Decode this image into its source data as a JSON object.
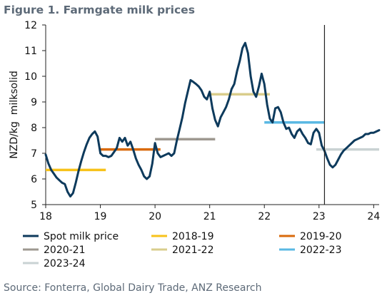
{
  "figure_title": "Figure 1. Farmgate milk prices",
  "source": "Source: Fonterra, Global Dairy Trade, ANZ Research",
  "colors": {
    "spot": "#0d3a5c",
    "s2018": "#f7c21a",
    "s2019": "#d96a0b",
    "s2020": "#9e9890",
    "s2021": "#d9cd8c",
    "s2022": "#5ab8e3",
    "s2023": "#c9d2d3",
    "axis": "#222222",
    "vline": "#222222"
  },
  "chart_data": {
    "type": "line",
    "title": "Figure 1. Farmgate milk prices",
    "ylabel": "NZD/kg  milksolid",
    "xlabel": "",
    "xlim": [
      18,
      24.1
    ],
    "ylim": [
      5,
      12
    ],
    "x_ticks": [
      18,
      19,
      20,
      21,
      22,
      23,
      24
    ],
    "x_tick_labels": [
      "18",
      "19",
      "20",
      "21",
      "22",
      "23",
      "24"
    ],
    "y_ticks": [
      5,
      6,
      7,
      8,
      9,
      10,
      11,
      12
    ],
    "y_tick_labels": [
      "5",
      "6",
      "7",
      "8",
      "9",
      "10",
      "11",
      "12"
    ],
    "vertical_line_x": 23.1,
    "legend_position": "bottom",
    "series": [
      {
        "name": "Spot milk price",
        "key": "spot",
        "x": [
          18.0,
          18.05,
          18.1,
          18.15,
          18.2,
          18.25,
          18.3,
          18.35,
          18.4,
          18.45,
          18.5,
          18.55,
          18.6,
          18.65,
          18.7,
          18.75,
          18.8,
          18.85,
          18.9,
          18.95,
          19.0,
          19.05,
          19.1,
          19.15,
          19.2,
          19.25,
          19.3,
          19.35,
          19.4,
          19.45,
          19.5,
          19.55,
          19.6,
          19.65,
          19.7,
          19.75,
          19.8,
          19.85,
          19.9,
          19.95,
          20.0,
          20.05,
          20.1,
          20.15,
          20.2,
          20.25,
          20.3,
          20.35,
          20.4,
          20.45,
          20.5,
          20.55,
          20.6,
          20.65,
          20.7,
          20.75,
          20.8,
          20.85,
          20.9,
          20.95,
          21.0,
          21.05,
          21.1,
          21.15,
          21.2,
          21.25,
          21.3,
          21.35,
          21.4,
          21.45,
          21.5,
          21.55,
          21.6,
          21.65,
          21.7,
          21.75,
          21.8,
          21.85,
          21.9,
          21.95,
          22.0,
          22.05,
          22.1,
          22.15,
          22.2,
          22.25,
          22.3,
          22.35,
          22.4,
          22.45,
          22.5,
          22.55,
          22.6,
          22.65,
          22.7,
          22.75,
          22.8,
          22.85,
          22.9,
          22.95,
          23.0,
          23.05,
          23.1,
          23.15,
          23.2,
          23.25,
          23.3,
          23.35,
          23.4,
          23.45,
          23.5,
          23.55,
          23.6,
          23.65,
          23.7,
          23.75,
          23.8,
          23.85,
          23.9,
          23.95,
          24.0,
          24.05,
          24.1
        ],
        "y": [
          6.95,
          6.6,
          6.35,
          6.2,
          6.05,
          5.95,
          5.85,
          5.8,
          5.5,
          5.32,
          5.45,
          5.85,
          6.3,
          6.7,
          7.05,
          7.35,
          7.6,
          7.75,
          7.85,
          7.65,
          7.0,
          6.9,
          6.9,
          6.85,
          6.9,
          7.05,
          7.2,
          7.6,
          7.45,
          7.6,
          7.3,
          7.45,
          7.15,
          6.8,
          6.55,
          6.35,
          6.1,
          6.0,
          6.1,
          6.6,
          7.4,
          7.0,
          6.85,
          6.9,
          6.95,
          7.0,
          6.9,
          7.0,
          7.5,
          7.95,
          8.4,
          8.95,
          9.4,
          9.85,
          9.78,
          9.7,
          9.6,
          9.45,
          9.2,
          9.1,
          9.4,
          8.75,
          8.3,
          8.05,
          8.4,
          8.6,
          8.8,
          9.1,
          9.5,
          9.7,
          10.2,
          10.6,
          11.1,
          11.3,
          10.9,
          10.0,
          9.4,
          9.2,
          9.6,
          10.1,
          9.7,
          8.9,
          8.35,
          8.2,
          8.75,
          8.8,
          8.6,
          8.2,
          7.95,
          8.0,
          7.75,
          7.6,
          7.85,
          7.95,
          7.75,
          7.6,
          7.4,
          7.35,
          7.8,
          7.95,
          7.8,
          7.3,
          7.1,
          6.8,
          6.55,
          6.45,
          6.55,
          6.75,
          6.95,
          7.1,
          7.2,
          7.3,
          7.4,
          7.5,
          7.55,
          7.6,
          7.65,
          7.75,
          7.75,
          7.8,
          7.8,
          7.85,
          7.9
        ]
      },
      {
        "name": "2018-19",
        "key": "s2018",
        "x": [
          18.0,
          19.1
        ],
        "y": [
          6.35,
          6.35
        ]
      },
      {
        "name": "2019-20",
        "key": "s2019",
        "x": [
          19.0,
          20.1
        ],
        "y": [
          7.15,
          7.15
        ]
      },
      {
        "name": "2020-21",
        "key": "s2020",
        "x": [
          20.0,
          21.1
        ],
        "y": [
          7.55,
          7.55
        ]
      },
      {
        "name": "2021-22",
        "key": "s2021",
        "x": [
          21.0,
          22.1
        ],
        "y": [
          9.3,
          9.3
        ]
      },
      {
        "name": "2022-23",
        "key": "s2022",
        "x": [
          22.0,
          23.1
        ],
        "y": [
          8.2,
          8.2
        ]
      },
      {
        "name": "2023-24",
        "key": "s2023",
        "x": [
          22.95,
          24.1
        ],
        "y": [
          7.15,
          7.15
        ]
      }
    ]
  }
}
